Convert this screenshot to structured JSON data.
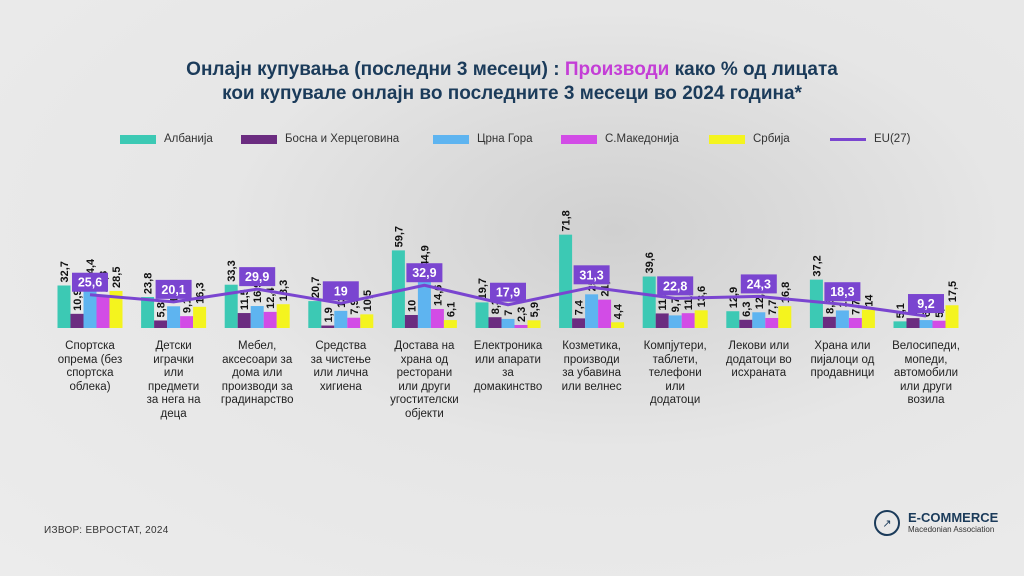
{
  "title_part1": "Онлајн купувања (последни 3 месеци) : ",
  "title_highlight": "Производи",
  "title_part2": " како % од лицата",
  "title_line2": "кои купувале онлајн во последните 3 месеци во 2024 година*",
  "source": "ИЗВОР: ЕВРОСТАТ, 2024",
  "logo": {
    "icon": "chart-hand-icon",
    "name": "E-COMMERCE",
    "subtitle": "Macedonian Association"
  },
  "chart_data": {
    "type": "bar",
    "categories": [
      "Спортска опрема (без спортска облека)",
      "Детски играчки или предмети за нега на деца",
      "Мебел, аксесоари за дома или производи за градинарство",
      "Средства за чистење или лична хигиена",
      "Достава на храна од ресторани или други угостителски објекти",
      "Електроника или апарати за домакинство",
      "Козметика, производи за убавина или велнес",
      "Компјутери, таблети, телефони или додатоци",
      "Лекови или додатоци во исхраната",
      "Храна или пијалоци од продавници",
      "Велосипеди, мопеди, автомобили или други возила"
    ],
    "category_lines": [
      [
        "Спортска",
        "опрема (без",
        "спортска",
        "облека)"
      ],
      [
        "Детски",
        "играчки",
        "или",
        "предмети",
        "за нега на",
        "деца"
      ],
      [
        "Мебел,",
        "аксесоари за",
        "дома или",
        "производи за",
        "градинарство"
      ],
      [
        "Средства",
        "за чистење",
        "или лична",
        "хигиена"
      ],
      [
        "Достава на",
        "храна од",
        "ресторани",
        "или други",
        "угостителски",
        "објекти"
      ],
      [
        "Електроника",
        "или апарати за",
        "домакинство"
      ],
      [
        "Козметика,",
        "производи",
        "за убавина",
        "или велнес"
      ],
      [
        "Компјутери,",
        "таблети,",
        "телефони",
        "или",
        "додатоци"
      ],
      [
        "Лекови или",
        "додатоци во",
        "исхраната"
      ],
      [
        "Храна или",
        "пијалоци од",
        "продавници"
      ],
      [
        "Велосипеди,",
        "мопеди,",
        "автомобили",
        "или други",
        "возила"
      ]
    ],
    "series": [
      {
        "name": "Албанија",
        "color": "#3cc9b4",
        "values": [
          32.7,
          23.8,
          33.3,
          20.7,
          59.7,
          19.7,
          71.8,
          39.6,
          12.9,
          37.2,
          5.1
        ]
      },
      {
        "name": "Босна и Херцеговина",
        "color": "#6b2c80",
        "values": [
          10.9,
          5.8,
          11.5,
          1.9,
          10,
          8.3,
          7.4,
          11.2,
          6.3,
          8.6,
          7.6
        ]
      },
      {
        "name": "Црна Гора",
        "color": "#5eb4f0",
        "values": [
          34.4,
          16.7,
          16.9,
          13.2,
          44.9,
          7,
          25.9,
          9.7,
          12.1,
          13.5,
          6.1
        ]
      },
      {
        "name": "С.Македонија",
        "color": "#d24ce6",
        "values": [
          25.3,
          9.1,
          12.4,
          7.9,
          14.6,
          2.3,
          21.8,
          11.4,
          7.7,
          7.7,
          5.6
        ]
      },
      {
        "name": "Србија",
        "color": "#f4f41e",
        "values": [
          28.5,
          16.3,
          18.3,
          10.5,
          6.1,
          5.9,
          4.4,
          13.6,
          16.8,
          14,
          17.5
        ]
      }
    ],
    "line_series": {
      "name": "EU(27)",
      "color": "#7a45d0",
      "values": [
        25.6,
        20.1,
        29.9,
        19,
        32.9,
        17.9,
        31.3,
        22.8,
        24.3,
        18.3,
        9.2
      ]
    },
    "value_labels": {
      "Албанија": [
        "32,7",
        "23,8",
        "33,3",
        "20,7",
        "59,7",
        "19,7",
        "71,8",
        "39,6",
        "12,9",
        "37,2",
        "5,1"
      ],
      "Босна и Херцеговина": [
        "10,9",
        "5,8",
        "11,5",
        "1,9",
        "10",
        "8,3",
        "7,4",
        "11,2",
        "6,3",
        "8,6",
        "7,6"
      ],
      "Црна Гора": [
        "34,4",
        "16,7",
        "16,9",
        "13,2",
        "44,9",
        "7",
        "25,9",
        "9,7",
        "12,1",
        "13,5",
        "6,1"
      ],
      "С.Македонија": [
        "25,3",
        "9,1",
        "12,4",
        "7,9",
        "14,6",
        "2,3",
        "21,8",
        "11,4",
        "7,7",
        "7,7",
        "5,6"
      ],
      "Србија": [
        "28,5",
        "16,3",
        "18,3",
        "10,5",
        "6,1",
        "5,9",
        "4,4",
        "13,6",
        "16,8",
        "14",
        "17,5"
      ],
      "EU(27)": [
        "25,6",
        "20,1",
        "29,9",
        "19",
        "32,9",
        "17,9",
        "31,3",
        "22,8",
        "24,3",
        "18,3",
        "9,2"
      ]
    },
    "ylim": [
      0,
      80
    ],
    "grid": false,
    "legend_position": "top"
  }
}
